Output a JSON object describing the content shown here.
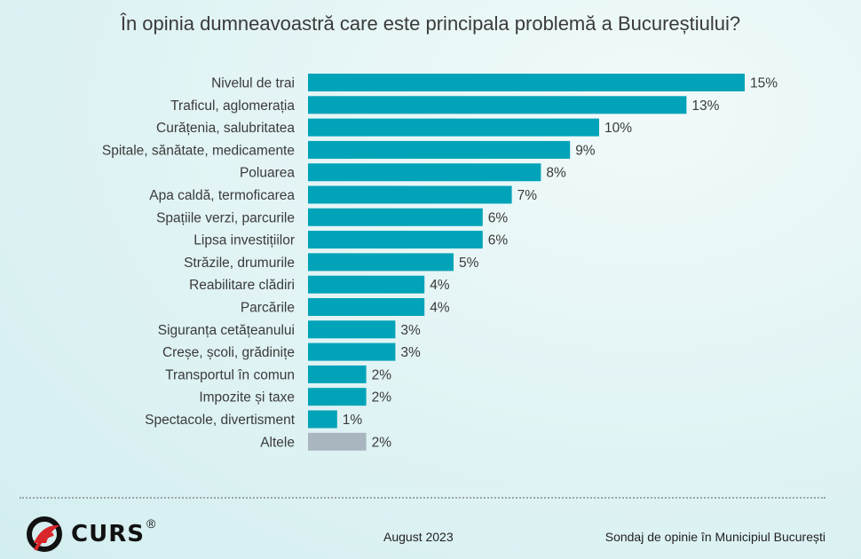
{
  "chart_data": {
    "type": "bar",
    "orientation": "horizontal",
    "title": "În opinia dumneavoastră care este principala problemă a Bucureștiului?",
    "categories": [
      "Nivelul de trai",
      "Traficul, aglomerația",
      "Curățenia, salubritatea",
      "Spitale, sănătate, medicamente",
      "Poluarea",
      "Apa caldă, termoficarea",
      "Spațiile verzi, parcurile",
      "Lipsa investițiilor",
      "Străzile, drumurile",
      "Reabilitare clădiri",
      "Parcările",
      "Siguranța cetățeanului",
      "Creșe, școli, grădinițe",
      "Transportul în comun",
      "Impozite și taxe",
      "Spectacole, divertisment",
      "Altele"
    ],
    "values": [
      15,
      13,
      10,
      9,
      8,
      7,
      6,
      6,
      5,
      4,
      4,
      3,
      3,
      2,
      2,
      1,
      2
    ],
    "value_labels": [
      "15%",
      "13%",
      "10%",
      "9%",
      "8%",
      "7%",
      "6%",
      "6%",
      "5%",
      "4%",
      "4%",
      "3%",
      "3%",
      "2%",
      "2%",
      "1%",
      "2%"
    ],
    "unit": "%",
    "grid": false,
    "legend": "none",
    "colors": {
      "bar": "#00a3b8",
      "other_bar": "#a9b6bf"
    }
  },
  "footer": {
    "logo": "CURS",
    "logo_mark": "®",
    "date": "August 2023",
    "source": "Sondaj de opinie în Municipiul București"
  }
}
